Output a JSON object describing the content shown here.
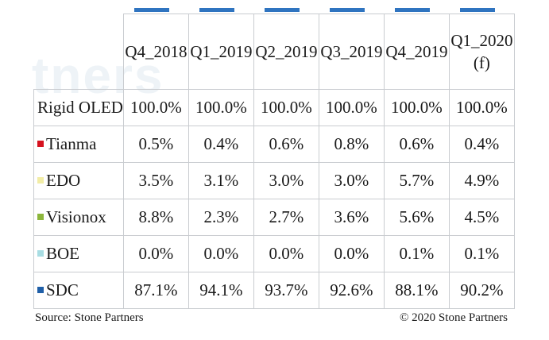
{
  "chart_data": {
    "type": "table",
    "columns": [
      "Q4_2018",
      "Q1_2019",
      "Q2_2019",
      "Q3_2019",
      "Q4_2019",
      "Q1_2020\n(f)"
    ],
    "total_row": {
      "label": "Rigid OLED",
      "values": [
        "100.0%",
        "100.0%",
        "100.0%",
        "100.0%",
        "100.0%",
        "100.0%"
      ]
    },
    "rows": [
      {
        "label": "Tianma",
        "color": "#d6121f",
        "values": [
          "0.5%",
          "0.4%",
          "0.6%",
          "0.8%",
          "0.6%",
          "0.4%"
        ]
      },
      {
        "label": "EDO",
        "color": "#f2eda6",
        "values": [
          "3.5%",
          "3.1%",
          "3.0%",
          "3.0%",
          "5.7%",
          "4.9%"
        ]
      },
      {
        "label": "Visionox",
        "color": "#8cb63c",
        "values": [
          "8.8%",
          "2.3%",
          "2.7%",
          "3.6%",
          "5.6%",
          "4.5%"
        ]
      },
      {
        "label": "BOE",
        "color": "#a8dde3",
        "values": [
          "0.0%",
          "0.0%",
          "0.0%",
          "0.0%",
          "0.1%",
          "0.1%"
        ]
      },
      {
        "label": "SDC",
        "color": "#1f5fa8",
        "values": [
          "87.1%",
          "94.1%",
          "93.7%",
          "92.6%",
          "88.1%",
          "90.2%"
        ]
      }
    ]
  },
  "watermark": "tners",
  "footer": {
    "source": "Source: Stone Partners",
    "copyright": "© 2020 Stone Partners"
  },
  "colors": {
    "accent_bar": "#2f74c0",
    "grid": "#c9ccd0"
  }
}
